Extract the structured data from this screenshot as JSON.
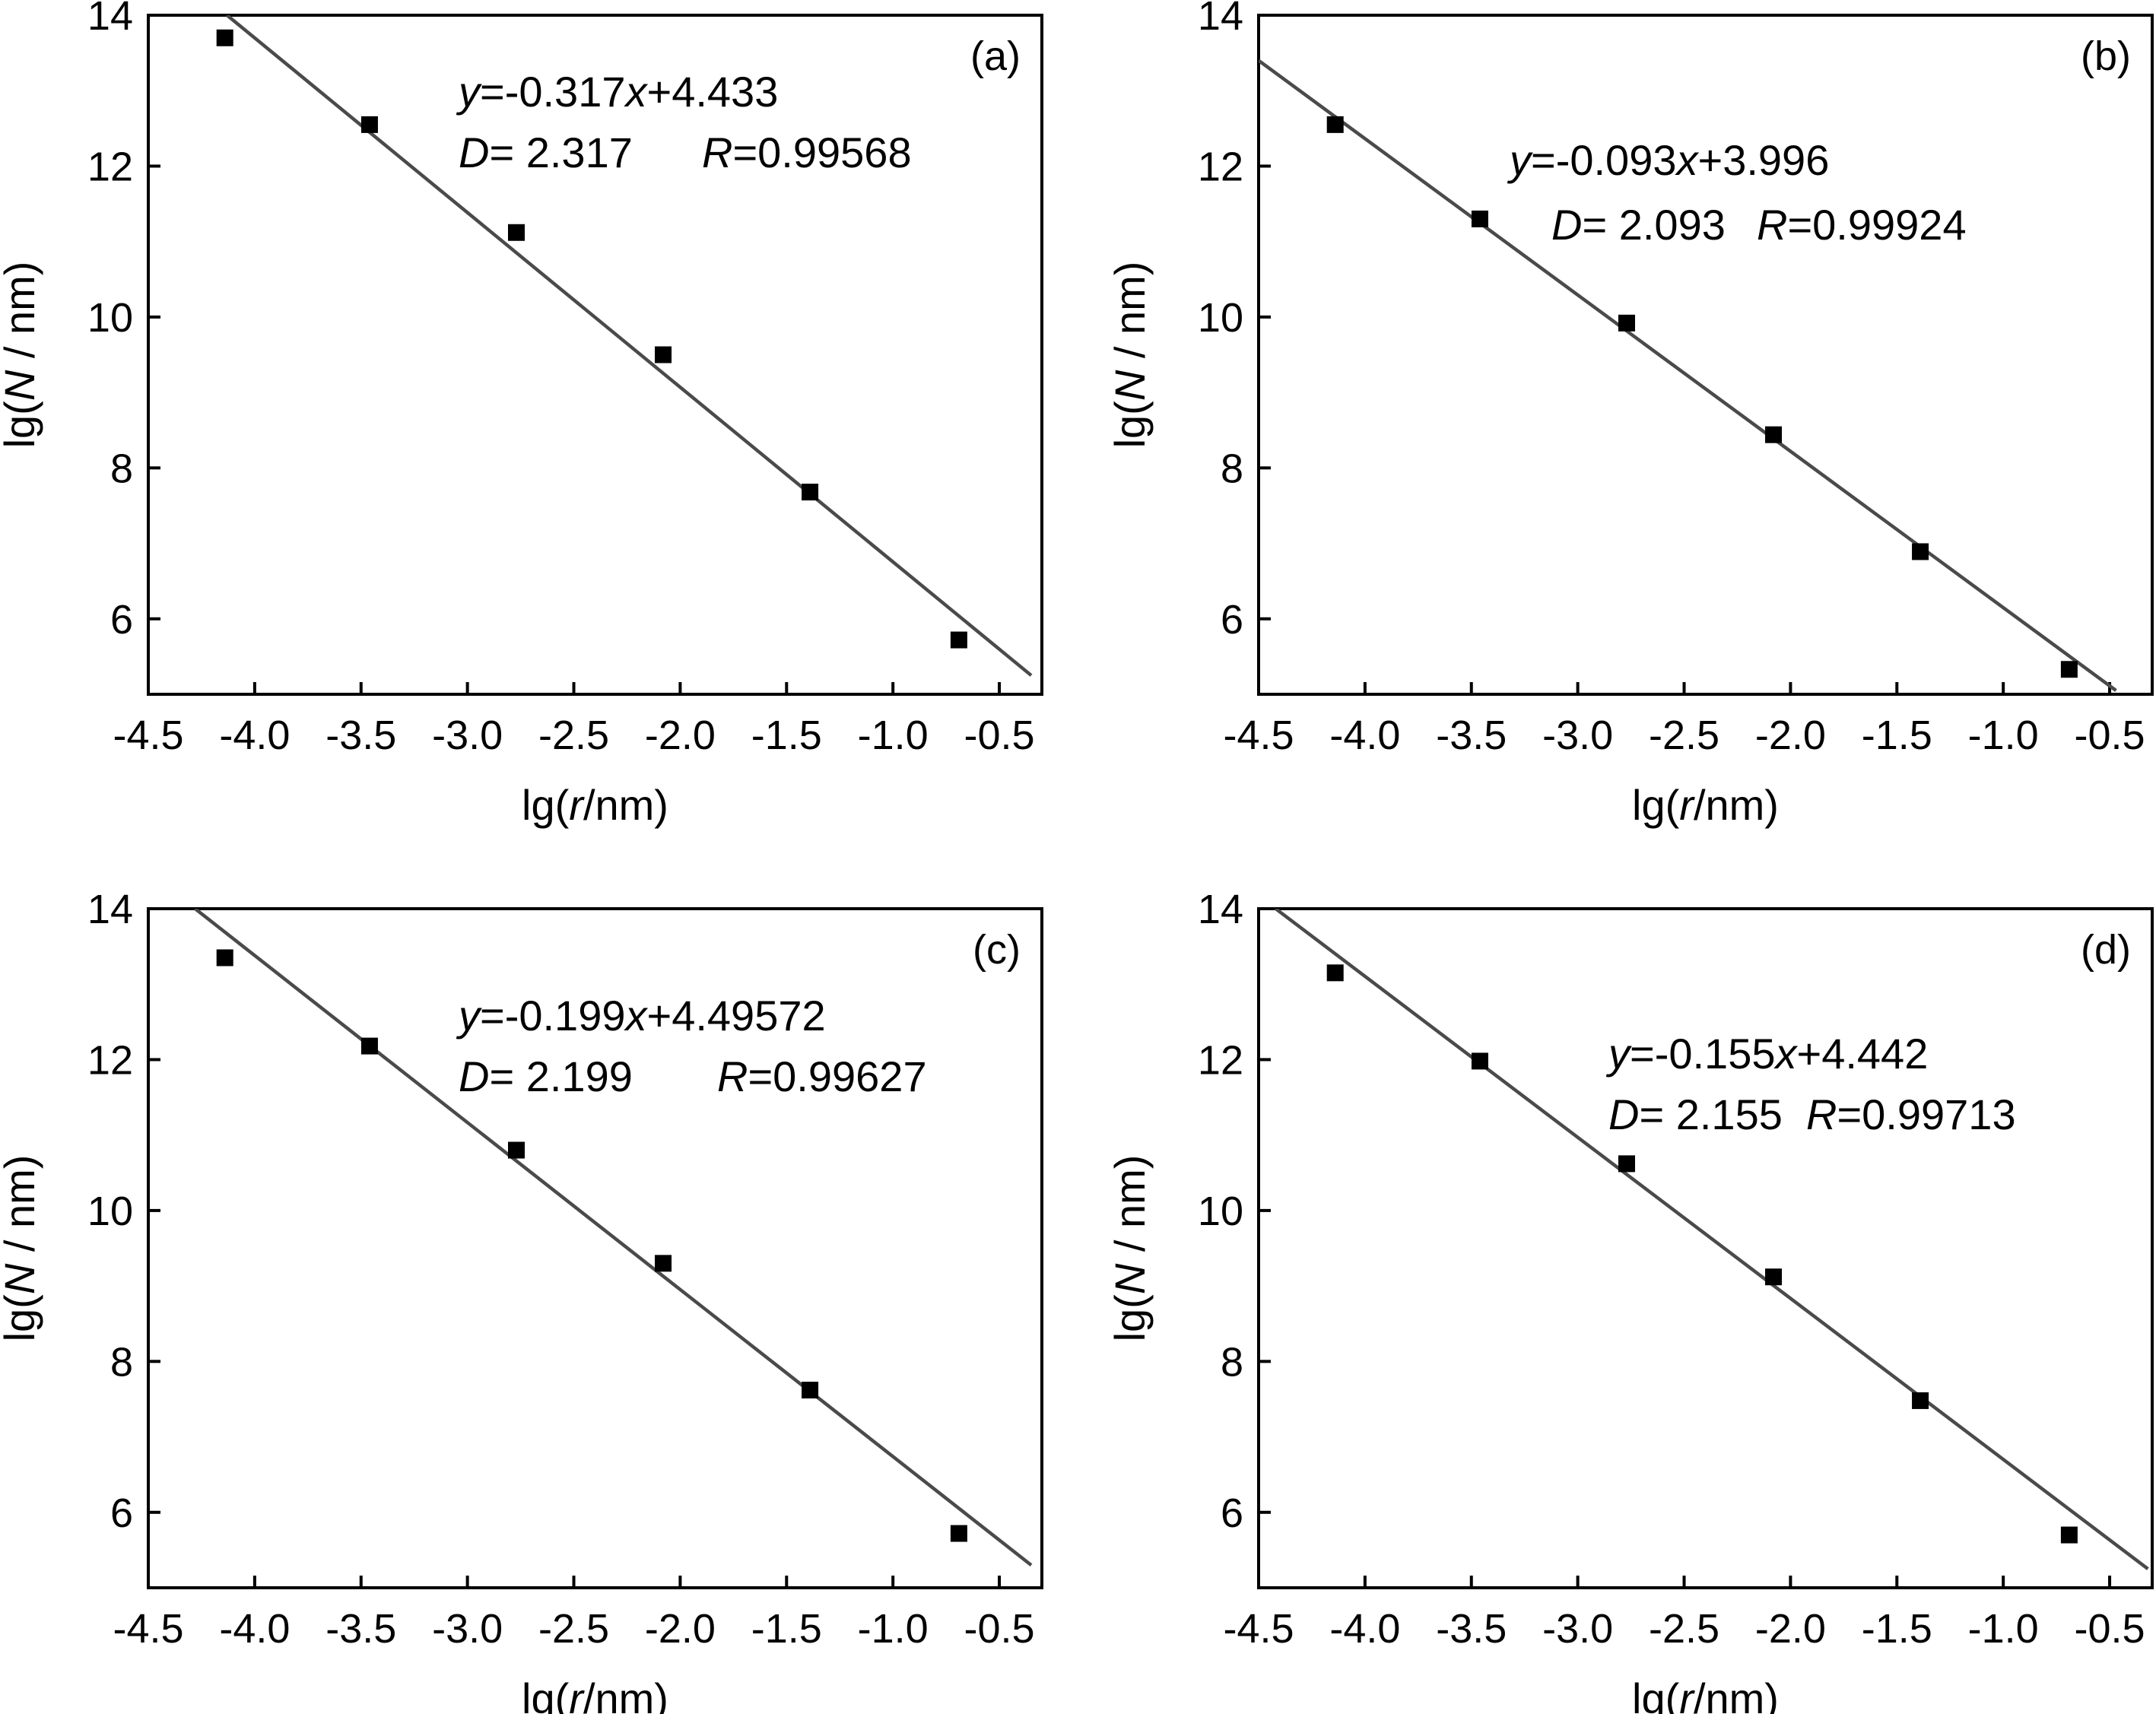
{
  "chart_data": [
    {
      "type": "scatter",
      "panel_label": "(a)",
      "xlabel": {
        "prefix": "lg(",
        "var": "r",
        "suffix": "/nm)"
      },
      "ylabel": {
        "prefix": "lg(",
        "var": "N",
        "suffix": " / nm)"
      },
      "xlim": [
        -4.5,
        -0.3
      ],
      "ylim": [
        5.0,
        14.0
      ],
      "xticks": [
        -4.5,
        -4.0,
        -3.5,
        -3.0,
        -2.5,
        -2.0,
        -1.5,
        -1.0,
        -0.5
      ],
      "xtick_labels": [
        "-4.5",
        "-4.0",
        "-3.5",
        "-3.0",
        "-2.5",
        "-2.0",
        "-1.5",
        "-1.0",
        "-0.5"
      ],
      "yticks": [
        6,
        8,
        10,
        12,
        14
      ],
      "ytick_labels": [
        "6",
        "8",
        "10",
        "12",
        "14"
      ],
      "series": [
        {
          "x": [
            -4.14,
            -3.46,
            -2.77,
            -2.08,
            -1.39,
            -0.69
          ],
          "y": [
            13.7,
            12.55,
            11.12,
            9.5,
            7.68,
            5.72
          ]
        }
      ],
      "fit": {
        "x": [
          -4.13,
          -0.35
        ],
        "y": [
          14.0,
          5.25
        ]
      },
      "equation": {
        "y": "y",
        "mid": "=-0.317",
        "x": "x",
        "rest": "+4.433"
      },
      "stats": {
        "D_var": "D",
        "D_text": "= 2.317",
        "R_var": "R",
        "R_text": "=0.99568"
      }
    },
    {
      "type": "scatter",
      "panel_label": "(b)",
      "xlabel": {
        "prefix": "lg(",
        "var": "r",
        "suffix": "/nm)"
      },
      "ylabel": {
        "prefix": "lg(",
        "var": "N",
        "suffix": " / nm)"
      },
      "xlim": [
        -4.5,
        -0.3
      ],
      "ylim": [
        5.0,
        14.0
      ],
      "xticks": [
        -4.5,
        -4.0,
        -3.5,
        -3.0,
        -2.5,
        -2.0,
        -1.5,
        -1.0,
        -0.5
      ],
      "xtick_labels": [
        "-4.5",
        "-4.0",
        "-3.5",
        "-3.0",
        "-2.5",
        "-2.0",
        "-1.5",
        "-1.0",
        "-0.5"
      ],
      "yticks": [
        6,
        8,
        10,
        12,
        14
      ],
      "ytick_labels": [
        "6",
        "8",
        "10",
        "12",
        "14"
      ],
      "series": [
        {
          "x": [
            -4.14,
            -3.46,
            -2.77,
            -2.08,
            -1.39,
            -0.69
          ],
          "y": [
            12.55,
            11.3,
            9.92,
            8.44,
            6.89,
            5.33
          ]
        }
      ],
      "fit": {
        "x": [
          -4.5,
          -0.47
        ],
        "y": [
          13.4,
          5.05
        ]
      },
      "equation": {
        "y": "y",
        "mid": "=-0.093",
        "x": "x",
        "rest": "+3.996"
      },
      "stats": {
        "D_var": "D",
        "D_text": "= 2.093",
        "R_var": "R",
        "R_text": "=0.99924"
      }
    },
    {
      "type": "scatter",
      "panel_label": "(c)",
      "xlabel": {
        "prefix": "lg(",
        "var": "r",
        "suffix": "/nm)"
      },
      "ylabel": {
        "prefix": "lg(",
        "var": "N",
        "suffix": " / nm)"
      },
      "xlim": [
        -4.5,
        -0.3
      ],
      "ylim": [
        5.0,
        14.0
      ],
      "xticks": [
        -4.5,
        -4.0,
        -3.5,
        -3.0,
        -2.5,
        -2.0,
        -1.5,
        -1.0,
        -0.5
      ],
      "xtick_labels": [
        "-4.5",
        "-4.0",
        "-3.5",
        "-3.0",
        "-2.5",
        "-2.0",
        "-1.5",
        "-1.0",
        "-0.5"
      ],
      "yticks": [
        6,
        8,
        10,
        12,
        14
      ],
      "ytick_labels": [
        "6",
        "8",
        "10",
        "12",
        "14"
      ],
      "series": [
        {
          "x": [
            -4.14,
            -3.46,
            -2.77,
            -2.08,
            -1.39,
            -0.69
          ],
          "y": [
            13.35,
            12.18,
            10.8,
            9.3,
            7.62,
            5.72
          ]
        }
      ],
      "fit": {
        "x": [
          -4.28,
          -0.35
        ],
        "y": [
          14.0,
          5.3
        ]
      },
      "equation": {
        "y": "y",
        "mid": "=-0.199",
        "x": "x",
        "rest": "+4.49572"
      },
      "stats": {
        "D_var": "D",
        "D_text": "= 2.199",
        "R_var": "R",
        "R_text": "=0.99627"
      }
    },
    {
      "type": "scatter",
      "panel_label": "(d)",
      "xlabel": {
        "prefix": "lg(",
        "var": "r",
        "suffix": "/nm)"
      },
      "ylabel": {
        "prefix": "lg(",
        "var": "N",
        "suffix": " / nm)"
      },
      "xlim": [
        -4.5,
        -0.3
      ],
      "ylim": [
        5.0,
        14.0
      ],
      "xticks": [
        -4.5,
        -4.0,
        -3.5,
        -3.0,
        -2.5,
        -2.0,
        -1.5,
        -1.0,
        -0.5
      ],
      "xtick_labels": [
        "-4.5",
        "-4.0",
        "-3.5",
        "-3.0",
        "-2.5",
        "-2.0",
        "-1.5",
        "-1.0",
        "-0.5"
      ],
      "yticks": [
        6,
        8,
        10,
        12,
        14
      ],
      "ytick_labels": [
        "6",
        "8",
        "10",
        "12",
        "14"
      ],
      "series": [
        {
          "x": [
            -4.14,
            -3.46,
            -2.77,
            -2.08,
            -1.39,
            -0.69
          ],
          "y": [
            13.15,
            11.98,
            10.62,
            9.12,
            7.48,
            5.7
          ]
        }
      ],
      "fit": {
        "x": [
          -4.42,
          -0.32
        ],
        "y": [
          14.0,
          5.25
        ]
      },
      "equation": {
        "y": "y",
        "mid": "=-0.155",
        "x": "x",
        "rest": "+4.442"
      },
      "stats": {
        "D_var": "D",
        "D_text": "= 2.155",
        "R_var": "R",
        "R_text": "=0.99713"
      }
    }
  ]
}
